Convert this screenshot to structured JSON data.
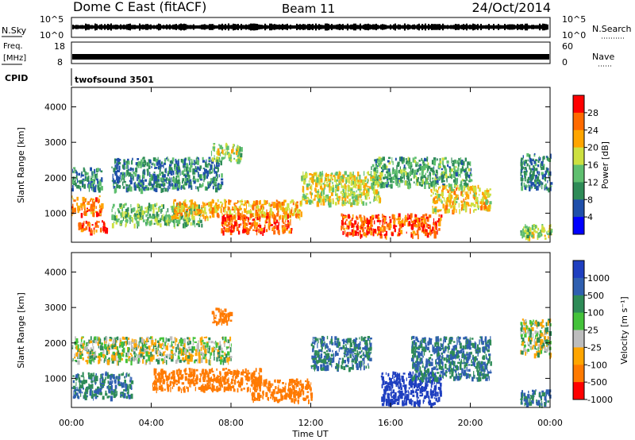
{
  "header": {
    "station": "Dome C East (fitACF)",
    "beam": "Beam 11",
    "date": "24/Oct/2014"
  },
  "noise_panel": {
    "left_label": "N.Sky",
    "right_label": "N.Search",
    "ticks": [
      "10^5",
      "10^0"
    ]
  },
  "freq_panel": {
    "left_label_1": "Freq.",
    "left_label_2": "[MHz]",
    "right_label": "Nave",
    "left_ticks": [
      "18",
      "8"
    ],
    "right_ticks": [
      "60",
      "0"
    ]
  },
  "cpid": {
    "label": "CPID",
    "value": "twofsound 3501"
  },
  "colors": {
    "power_scale": [
      "#0000ff",
      "#1f4faa",
      "#2e8b57",
      "#5fbf6f",
      "#cde040",
      "#ffa500",
      "#ff6a00",
      "#ff0000"
    ],
    "velocity_scale": [
      "#1f3fc0",
      "#2f5fb0",
      "#2e8b57",
      "#44c23a",
      "#bdbdbd",
      "#ffa500",
      "#ff7a00",
      "#ff0000"
    ]
  },
  "chart_data": [
    {
      "type": "heatmap",
      "title": "",
      "xlabel": "Time UT",
      "ylabel": "Slant Range [km]",
      "xlim": [
        "00:00",
        "24:00"
      ],
      "ylim": [
        180,
        4550
      ],
      "x_ticks": [
        "00:00",
        "04:00",
        "08:00",
        "12:00",
        "16:00",
        "20:00",
        "00:00"
      ],
      "y_ticks": [
        1000,
        2000,
        3000,
        4000
      ],
      "colorbar": {
        "label": "Power [dB]",
        "ticks": [
          4,
          8,
          12,
          16,
          20,
          24,
          28
        ],
        "range": [
          0,
          32
        ]
      },
      "features": [
        {
          "t0": 0.0,
          "t1": 1.5,
          "r0": 1000,
          "r1": 1500,
          "value": 24
        },
        {
          "t0": 0.0,
          "t1": 1.5,
          "r0": 1700,
          "r1": 2300,
          "value": 10
        },
        {
          "t0": 0.3,
          "t1": 1.8,
          "r0": 500,
          "r1": 800,
          "value": 26
        },
        {
          "t0": 2.0,
          "t1": 6.5,
          "r0": 700,
          "r1": 1300,
          "value": 14
        },
        {
          "t0": 2.0,
          "t1": 7.5,
          "r0": 1700,
          "r1": 2600,
          "value": 9
        },
        {
          "t0": 5.0,
          "t1": 11.5,
          "r0": 900,
          "r1": 1400,
          "value": 22
        },
        {
          "t0": 7.5,
          "t1": 11.0,
          "r0": 500,
          "r1": 1000,
          "value": 27
        },
        {
          "t0": 7.0,
          "t1": 8.5,
          "r0": 2500,
          "r1": 3000,
          "value": 16
        },
        {
          "t0": 11.5,
          "t1": 15.5,
          "r0": 1300,
          "r1": 2200,
          "value": 18
        },
        {
          "t0": 13.5,
          "t1": 18.5,
          "r0": 400,
          "r1": 1000,
          "value": 27
        },
        {
          "t0": 15.0,
          "t1": 20.0,
          "r0": 1800,
          "r1": 2600,
          "value": 12
        },
        {
          "t0": 18.0,
          "t1": 21.0,
          "r0": 1100,
          "r1": 1800,
          "value": 20
        },
        {
          "t0": 22.5,
          "t1": 24.0,
          "r0": 300,
          "r1": 700,
          "value": 16
        },
        {
          "t0": 22.5,
          "t1": 24.0,
          "r0": 1700,
          "r1": 2700,
          "value": 9
        }
      ]
    },
    {
      "type": "heatmap",
      "title": "",
      "xlabel": "Time UT",
      "ylabel": "Slant Range [km]",
      "xlim": [
        "00:00",
        "24:00"
      ],
      "ylim": [
        180,
        4550
      ],
      "x_ticks": [
        "00:00",
        "04:00",
        "08:00",
        "12:00",
        "16:00",
        "20:00",
        "00:00"
      ],
      "y_ticks": [
        1000,
        2000,
        3000,
        4000
      ],
      "colorbar": {
        "label": "Velocity [m s⁻¹]",
        "ticks": [
          1000,
          500,
          100,
          25,
          -25,
          -100,
          -500,
          -1000
        ]
      },
      "features": [
        {
          "t0": 0.0,
          "t1": 8.0,
          "r0": 1500,
          "r1": 2200,
          "value": 0
        },
        {
          "t0": 0.0,
          "t1": 3.0,
          "r0": 500,
          "r1": 1200,
          "value": 100
        },
        {
          "t0": 4.0,
          "t1": 9.5,
          "r0": 700,
          "r1": 1300,
          "value": -200
        },
        {
          "t0": 9.0,
          "t1": 12.0,
          "r0": 400,
          "r1": 1000,
          "value": -200
        },
        {
          "t0": 7.0,
          "t1": 8.0,
          "r0": 2600,
          "r1": 3000,
          "value": -200
        },
        {
          "t0": 12.0,
          "t1": 15.0,
          "r0": 1300,
          "r1": 2200,
          "value": 100
        },
        {
          "t0": 15.5,
          "t1": 18.5,
          "r0": 300,
          "r1": 1200,
          "value": 800
        },
        {
          "t0": 17.0,
          "t1": 21.0,
          "r0": 1000,
          "r1": 2200,
          "value": 100
        },
        {
          "t0": 22.5,
          "t1": 24.0,
          "r0": 300,
          "r1": 700,
          "value": 100
        },
        {
          "t0": 22.5,
          "t1": 24.0,
          "r0": 1700,
          "r1": 2700,
          "value": 0
        }
      ]
    }
  ]
}
